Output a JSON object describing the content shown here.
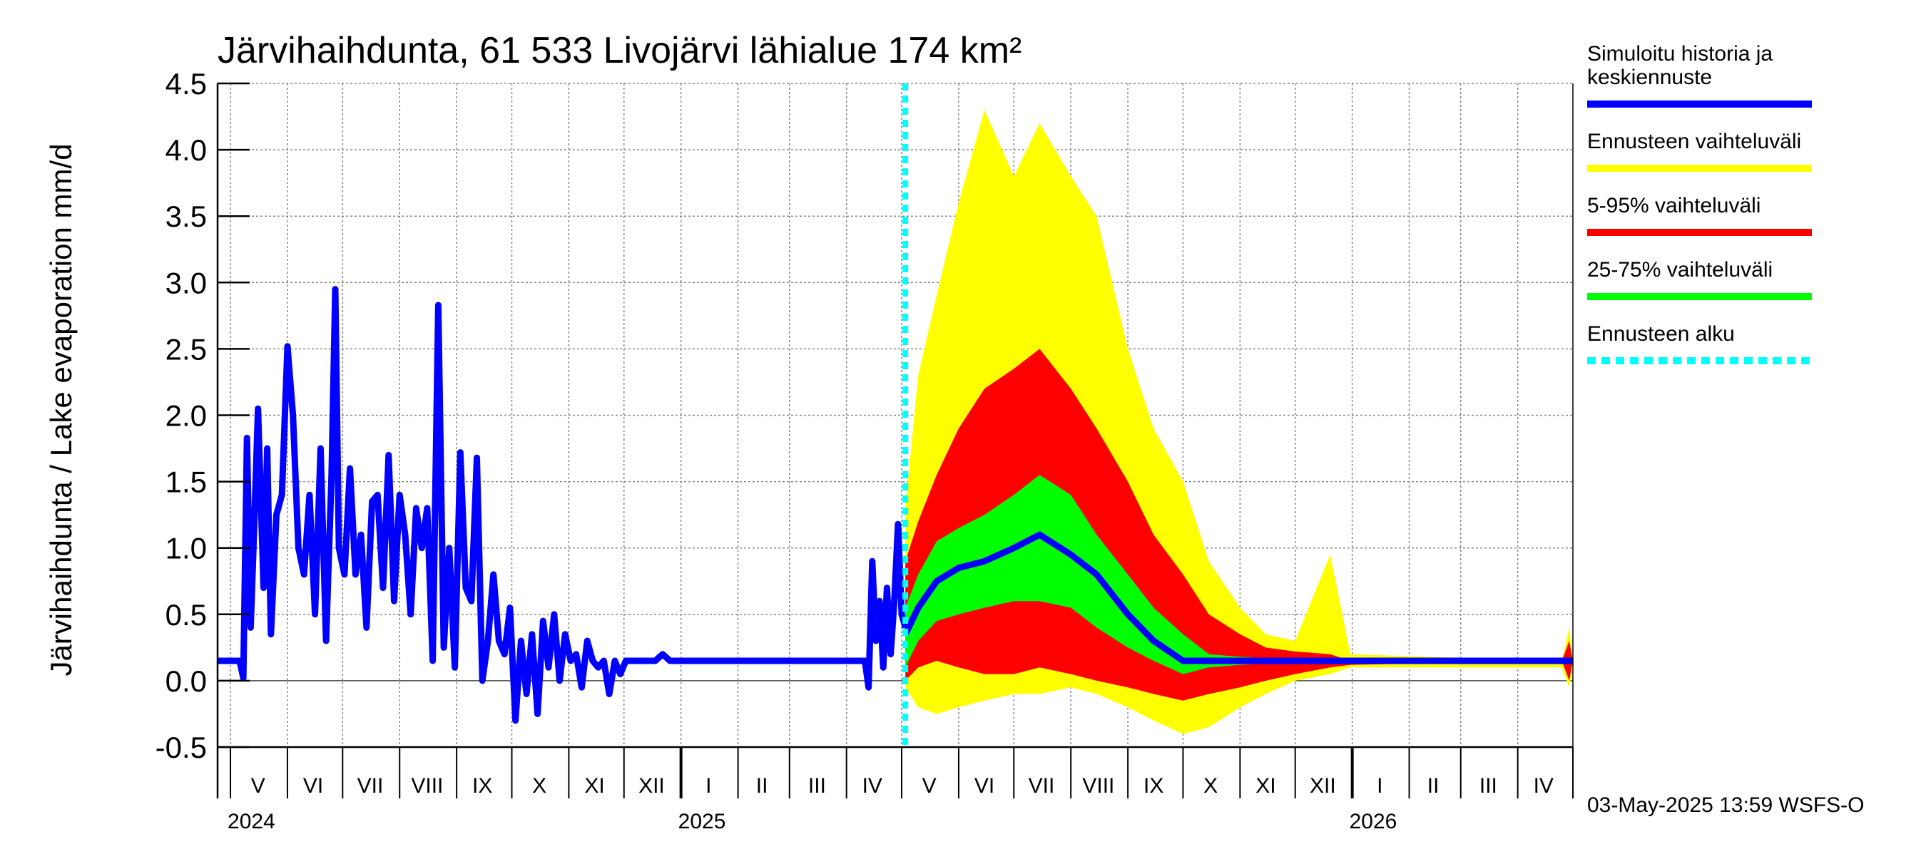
{
  "chart_data": {
    "type": "area",
    "title": "Järvihaihdunta, 61 533 Livojärvi lähialue 174 km²",
    "ylabel": "Järvihaihdunta / Lake evaporation   mm/d",
    "xlabel": "",
    "ylim": [
      -0.5,
      4.5
    ],
    "yticks": [
      "-0.5",
      "0.0",
      "0.5",
      "1.0",
      "1.5",
      "2.0",
      "2.5",
      "3.0",
      "3.5",
      "4.0",
      "4.5"
    ],
    "x_range": [
      "2024-04-24",
      "2026-05-01"
    ],
    "month_labels": [
      {
        "label": "V",
        "date": "2024-05-16"
      },
      {
        "label": "VI",
        "date": "2024-06-15"
      },
      {
        "label": "VII",
        "date": "2024-07-16"
      },
      {
        "label": "VIII",
        "date": "2024-08-16"
      },
      {
        "label": "IX",
        "date": "2024-09-15"
      },
      {
        "label": "X",
        "date": "2024-10-16"
      },
      {
        "label": "XI",
        "date": "2024-11-15"
      },
      {
        "label": "XII",
        "date": "2024-12-16"
      },
      {
        "label": "I",
        "date": "2025-01-16"
      },
      {
        "label": "II",
        "date": "2025-02-14"
      },
      {
        "label": "III",
        "date": "2025-03-16"
      },
      {
        "label": "IV",
        "date": "2025-04-15"
      },
      {
        "label": "V",
        "date": "2025-05-16"
      },
      {
        "label": "VI",
        "date": "2025-06-15"
      },
      {
        "label": "VII",
        "date": "2025-07-16"
      },
      {
        "label": "VIII",
        "date": "2025-08-16"
      },
      {
        "label": "IX",
        "date": "2025-09-15"
      },
      {
        "label": "X",
        "date": "2025-10-16"
      },
      {
        "label": "XI",
        "date": "2025-11-15"
      },
      {
        "label": "XII",
        "date": "2025-12-16"
      },
      {
        "label": "I",
        "date": "2026-01-16"
      },
      {
        "label": "II",
        "date": "2026-02-14"
      },
      {
        "label": "III",
        "date": "2026-03-16"
      },
      {
        "label": "IV",
        "date": "2026-04-15"
      }
    ],
    "year_labels": [
      {
        "label": "2024",
        "date": "2024-05-01"
      },
      {
        "label": "2025",
        "date": "2025-01-01"
      },
      {
        "label": "2026",
        "date": "2026-01-01"
      }
    ],
    "forecast_start": "2025-05-03",
    "history": [
      {
        "date": "2024-04-24",
        "y": 0.15
      },
      {
        "date": "2024-05-01",
        "y": 0.15
      },
      {
        "date": "2024-05-06",
        "y": 0.15
      },
      {
        "date": "2024-05-08",
        "y": 0.02
      },
      {
        "date": "2024-05-10",
        "y": 1.83
      },
      {
        "date": "2024-05-12",
        "y": 0.4
      },
      {
        "date": "2024-05-14",
        "y": 1.2
      },
      {
        "date": "2024-05-16",
        "y": 2.05
      },
      {
        "date": "2024-05-19",
        "y": 0.7
      },
      {
        "date": "2024-05-21",
        "y": 1.75
      },
      {
        "date": "2024-05-23",
        "y": 0.35
      },
      {
        "date": "2024-05-26",
        "y": 1.25
      },
      {
        "date": "2024-05-29",
        "y": 1.4
      },
      {
        "date": "2024-06-01",
        "y": 2.52
      },
      {
        "date": "2024-06-04",
        "y": 2.0
      },
      {
        "date": "2024-06-07",
        "y": 1.0
      },
      {
        "date": "2024-06-10",
        "y": 0.8
      },
      {
        "date": "2024-06-13",
        "y": 1.4
      },
      {
        "date": "2024-06-16",
        "y": 0.5
      },
      {
        "date": "2024-06-19",
        "y": 1.75
      },
      {
        "date": "2024-06-22",
        "y": 0.3
      },
      {
        "date": "2024-06-25",
        "y": 1.55
      },
      {
        "date": "2024-06-27",
        "y": 2.95
      },
      {
        "date": "2024-06-29",
        "y": 1.0
      },
      {
        "date": "2024-07-02",
        "y": 0.8
      },
      {
        "date": "2024-07-05",
        "y": 1.6
      },
      {
        "date": "2024-07-08",
        "y": 0.8
      },
      {
        "date": "2024-07-11",
        "y": 1.1
      },
      {
        "date": "2024-07-14",
        "y": 0.4
      },
      {
        "date": "2024-07-17",
        "y": 1.35
      },
      {
        "date": "2024-07-20",
        "y": 1.4
      },
      {
        "date": "2024-07-23",
        "y": 0.7
      },
      {
        "date": "2024-07-26",
        "y": 1.7
      },
      {
        "date": "2024-07-29",
        "y": 0.6
      },
      {
        "date": "2024-08-01",
        "y": 1.4
      },
      {
        "date": "2024-08-04",
        "y": 1.1
      },
      {
        "date": "2024-08-07",
        "y": 0.5
      },
      {
        "date": "2024-08-10",
        "y": 1.3
      },
      {
        "date": "2024-08-13",
        "y": 1.0
      },
      {
        "date": "2024-08-16",
        "y": 1.3
      },
      {
        "date": "2024-08-19",
        "y": 0.15
      },
      {
        "date": "2024-08-22",
        "y": 2.83
      },
      {
        "date": "2024-08-25",
        "y": 0.25
      },
      {
        "date": "2024-08-28",
        "y": 1.0
      },
      {
        "date": "2024-08-31",
        "y": 0.1
      },
      {
        "date": "2024-09-03",
        "y": 1.72
      },
      {
        "date": "2024-09-06",
        "y": 0.7
      },
      {
        "date": "2024-09-09",
        "y": 0.6
      },
      {
        "date": "2024-09-12",
        "y": 1.68
      },
      {
        "date": "2024-09-15",
        "y": 0.0
      },
      {
        "date": "2024-09-18",
        "y": 0.3
      },
      {
        "date": "2024-09-21",
        "y": 0.8
      },
      {
        "date": "2024-09-24",
        "y": 0.3
      },
      {
        "date": "2024-09-27",
        "y": 0.2
      },
      {
        "date": "2024-09-30",
        "y": 0.55
      },
      {
        "date": "2024-10-03",
        "y": -0.3
      },
      {
        "date": "2024-10-06",
        "y": 0.3
      },
      {
        "date": "2024-10-09",
        "y": -0.1
      },
      {
        "date": "2024-10-12",
        "y": 0.35
      },
      {
        "date": "2024-10-15",
        "y": -0.25
      },
      {
        "date": "2024-10-18",
        "y": 0.45
      },
      {
        "date": "2024-10-21",
        "y": 0.1
      },
      {
        "date": "2024-10-24",
        "y": 0.5
      },
      {
        "date": "2024-10-27",
        "y": 0.0
      },
      {
        "date": "2024-10-30",
        "y": 0.35
      },
      {
        "date": "2024-11-02",
        "y": 0.15
      },
      {
        "date": "2024-11-05",
        "y": 0.2
      },
      {
        "date": "2024-11-08",
        "y": -0.05
      },
      {
        "date": "2024-11-11",
        "y": 0.3
      },
      {
        "date": "2024-11-14",
        "y": 0.15
      },
      {
        "date": "2024-11-17",
        "y": 0.1
      },
      {
        "date": "2024-11-20",
        "y": 0.15
      },
      {
        "date": "2024-11-23",
        "y": -0.1
      },
      {
        "date": "2024-11-26",
        "y": 0.15
      },
      {
        "date": "2024-11-29",
        "y": 0.05
      },
      {
        "date": "2024-12-02",
        "y": 0.15
      },
      {
        "date": "2024-12-06",
        "y": 0.15
      },
      {
        "date": "2024-12-10",
        "y": 0.15
      },
      {
        "date": "2024-12-14",
        "y": 0.15
      },
      {
        "date": "2024-12-18",
        "y": 0.15
      },
      {
        "date": "2024-12-22",
        "y": 0.2
      },
      {
        "date": "2024-12-26",
        "y": 0.15
      },
      {
        "date": "2025-01-10",
        "y": 0.15
      },
      {
        "date": "2025-02-10",
        "y": 0.15
      },
      {
        "date": "2025-03-10",
        "y": 0.15
      },
      {
        "date": "2025-04-05",
        "y": 0.15
      },
      {
        "date": "2025-04-11",
        "y": 0.15
      },
      {
        "date": "2025-04-13",
        "y": -0.05
      },
      {
        "date": "2025-04-15",
        "y": 0.9
      },
      {
        "date": "2025-04-17",
        "y": 0.3
      },
      {
        "date": "2025-04-19",
        "y": 0.6
      },
      {
        "date": "2025-04-21",
        "y": 0.1
      },
      {
        "date": "2025-04-23",
        "y": 0.7
      },
      {
        "date": "2025-04-25",
        "y": 0.2
      },
      {
        "date": "2025-04-27",
        "y": 0.6
      },
      {
        "date": "2025-04-29",
        "y": 1.18
      },
      {
        "date": "2025-05-01",
        "y": 0.5
      },
      {
        "date": "2025-05-03",
        "y": 0.4
      }
    ],
    "forecast": [
      {
        "date": "2025-05-03",
        "min": -0.05,
        "p5": 0.0,
        "p25": 0.1,
        "median": 0.35,
        "p75": 0.55,
        "p95": 0.9,
        "max": 1.3
      },
      {
        "date": "2025-05-10",
        "min": -0.2,
        "p5": 0.1,
        "p25": 0.3,
        "median": 0.55,
        "p75": 0.8,
        "p95": 1.2,
        "max": 2.3
      },
      {
        "date": "2025-05-20",
        "min": -0.25,
        "p5": 0.15,
        "p25": 0.45,
        "median": 0.75,
        "p75": 1.05,
        "p95": 1.55,
        "max": 2.9
      },
      {
        "date": "2025-06-01",
        "min": -0.2,
        "p5": 0.1,
        "p25": 0.5,
        "median": 0.85,
        "p75": 1.15,
        "p95": 1.9,
        "max": 3.6
      },
      {
        "date": "2025-06-15",
        "min": -0.15,
        "p5": 0.05,
        "p25": 0.55,
        "median": 0.9,
        "p75": 1.25,
        "p95": 2.2,
        "max": 4.3
      },
      {
        "date": "2025-07-01",
        "min": -0.1,
        "p5": 0.05,
        "p25": 0.6,
        "median": 1.0,
        "p75": 1.4,
        "p95": 2.35,
        "max": 3.8
      },
      {
        "date": "2025-07-15",
        "min": -0.1,
        "p5": 0.1,
        "p25": 0.6,
        "median": 1.1,
        "p75": 1.55,
        "p95": 2.5,
        "max": 4.2
      },
      {
        "date": "2025-08-01",
        "min": -0.05,
        "p5": 0.05,
        "p25": 0.55,
        "median": 0.95,
        "p75": 1.4,
        "p95": 2.2,
        "max": 3.8
      },
      {
        "date": "2025-08-15",
        "min": -0.1,
        "p5": 0.0,
        "p25": 0.4,
        "median": 0.8,
        "p75": 1.1,
        "p95": 1.9,
        "max": 3.5
      },
      {
        "date": "2025-09-01",
        "min": -0.2,
        "p5": -0.05,
        "p25": 0.25,
        "median": 0.5,
        "p75": 0.8,
        "p95": 1.5,
        "max": 2.5
      },
      {
        "date": "2025-09-15",
        "min": -0.3,
        "p5": -0.1,
        "p25": 0.15,
        "median": 0.3,
        "p75": 0.55,
        "p95": 1.1,
        "max": 1.9
      },
      {
        "date": "2025-10-01",
        "min": -0.4,
        "p5": -0.15,
        "p25": 0.05,
        "median": 0.15,
        "p75": 0.35,
        "p95": 0.8,
        "max": 1.5
      },
      {
        "date": "2025-10-15",
        "min": -0.35,
        "p5": -0.1,
        "p25": 0.1,
        "median": 0.15,
        "p75": 0.2,
        "p95": 0.5,
        "max": 0.9
      },
      {
        "date": "2025-11-01",
        "min": -0.2,
        "p5": -0.05,
        "p25": 0.12,
        "median": 0.15,
        "p75": 0.18,
        "p95": 0.35,
        "max": 0.55
      },
      {
        "date": "2025-11-15",
        "min": -0.1,
        "p5": 0.0,
        "p25": 0.13,
        "median": 0.15,
        "p75": 0.17,
        "p95": 0.25,
        "max": 0.35
      },
      {
        "date": "2025-12-01",
        "min": 0.0,
        "p5": 0.05,
        "p25": 0.14,
        "median": 0.15,
        "p75": 0.16,
        "p95": 0.22,
        "max": 0.3
      },
      {
        "date": "2025-12-20",
        "min": 0.05,
        "p5": 0.1,
        "p25": 0.15,
        "median": 0.15,
        "p75": 0.15,
        "p95": 0.2,
        "max": 0.95
      },
      {
        "date": "2025-12-31",
        "min": 0.1,
        "p5": 0.12,
        "p25": 0.15,
        "median": 0.15,
        "p75": 0.15,
        "p95": 0.15,
        "max": 0.2
      },
      {
        "date": "2026-04-25",
        "min": 0.1,
        "p5": 0.15,
        "p25": 0.15,
        "median": 0.15,
        "p75": 0.15,
        "p95": 0.15,
        "max": 0.15
      },
      {
        "date": "2026-04-29",
        "min": -0.05,
        "p5": 0.0,
        "p25": 0.15,
        "median": 0.15,
        "p75": 0.15,
        "p95": 0.3,
        "max": 0.4
      },
      {
        "date": "2026-05-01",
        "min": 0.1,
        "p5": 0.15,
        "p25": 0.15,
        "median": 0.15,
        "p75": 0.15,
        "p95": 0.15,
        "max": 0.15
      }
    ],
    "legend": [
      {
        "label": "Simuloitu historia ja keskiennuste",
        "lines": [
          "Simuloitu historia ja",
          "keskiennuste"
        ],
        "color": "#0000ff",
        "style": "solid"
      },
      {
        "label": "Ennusteen vaihteluväli",
        "lines": [
          "Ennusteen vaihteluväli"
        ],
        "color": "#ffff00",
        "style": "solid"
      },
      {
        "label": "5-95% vaihteluväli",
        "lines": [
          "5-95% vaihteluväli"
        ],
        "color": "#ff0000",
        "style": "solid"
      },
      {
        "label": "25-75% vaihteluväli",
        "lines": [
          "25-75% vaihteluväli"
        ],
        "color": "#00ff00",
        "style": "solid"
      },
      {
        "label": "Ennusteen alku",
        "lines": [
          "Ennusteen alku"
        ],
        "color": "#00ffff",
        "style": "dashed"
      }
    ],
    "legend_position": "right",
    "grid": true,
    "footer": "03-May-2025 13:59 WSFS-O"
  }
}
